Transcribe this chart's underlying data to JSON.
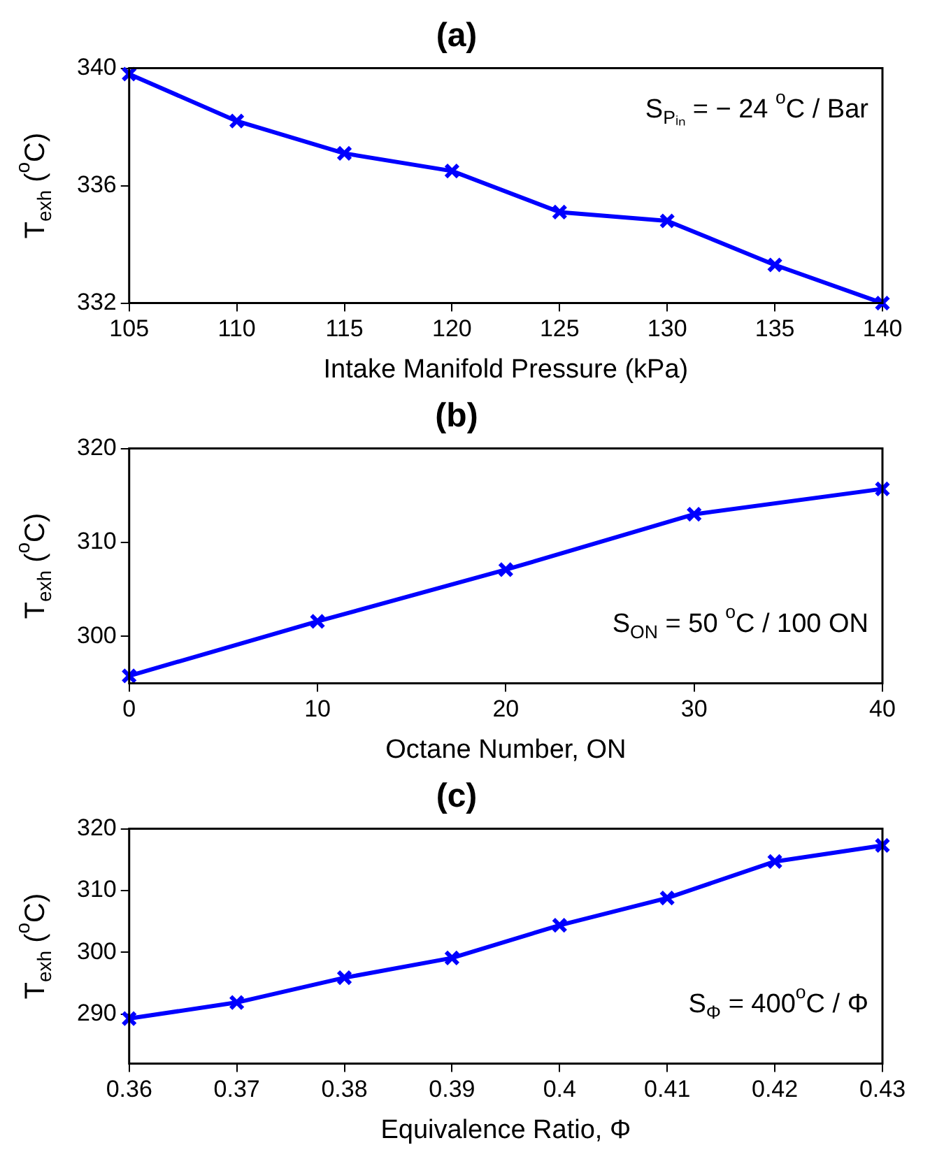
{
  "chart_data": [
    {
      "type": "line",
      "title": "(a)",
      "xlabel": "Intake Manifold Pressure (kPa)",
      "ylabel": "T$_{exh}$ ($^{o}$C)",
      "annotations": [
        "S$_{Pᵢₙ}$ = − 24 $^{o}$C / Bar"
      ],
      "x": [
        105,
        110,
        115,
        120,
        125,
        130,
        135,
        140
      ],
      "series": [
        {
          "color": "#0000ff",
          "values": [
            339.8,
            338.2,
            337.1,
            336.5,
            335.1,
            334.8,
            333.3,
            332.0
          ]
        }
      ],
      "xlim": [
        105,
        140
      ],
      "xticks": [
        105,
        110,
        115,
        120,
        125,
        130,
        135,
        140
      ],
      "ylim": [
        332,
        340
      ],
      "yticks": [
        332,
        336,
        340
      ],
      "marker": "cross",
      "line_style": "solid",
      "grid": false,
      "legend": false
    },
    {
      "type": "line",
      "title": "(b)",
      "xlabel": "Octane Number, ON",
      "ylabel": "T$_{exh}$ ($^{o}$C)",
      "annotations": [
        "S$_{ON}$ = 50 $^{o}$C / 100 ON"
      ],
      "x": [
        0,
        10,
        20,
        30,
        40
      ],
      "series": [
        {
          "color": "#0000ff",
          "values": [
            295.8,
            301.6,
            307.1,
            313.0,
            315.7
          ]
        }
      ],
      "xlim": [
        0,
        40
      ],
      "xticks": [
        0,
        10,
        20,
        30,
        40
      ],
      "ylim": [
        295,
        320
      ],
      "yticks": [
        300,
        310,
        320
      ],
      "marker": "cross",
      "line_style": "solid",
      "grid": false,
      "legend": false
    },
    {
      "type": "line",
      "title": "(c)",
      "xlabel": "Equivalence Ratio, Φ",
      "ylabel": "T$_{exh}$ ($^{o}$C)",
      "annotations": [
        "S$_{Φ}$ = 400$^{o}$C / Φ"
      ],
      "x": [
        0.36,
        0.37,
        0.38,
        0.39,
        0.4,
        0.41,
        0.42,
        0.43
      ],
      "series": [
        {
          "color": "#0000ff",
          "values": [
            289.3,
            291.9,
            295.9,
            299.1,
            304.4,
            308.8,
            314.7,
            317.3
          ]
        }
      ],
      "xlim": [
        0.36,
        0.43
      ],
      "xticks": [
        0.36,
        0.37,
        0.38,
        0.39,
        0.4,
        0.41,
        0.42,
        0.43
      ],
      "ylim": [
        282,
        320
      ],
      "yticks": [
        290,
        300,
        310,
        320
      ],
      "marker": "cross",
      "line_style": "solid",
      "grid": false,
      "legend": false
    }
  ]
}
